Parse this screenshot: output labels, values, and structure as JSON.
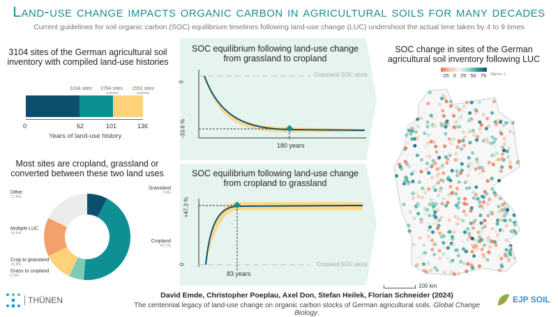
{
  "header": {
    "title": "Land-use change impacts organic carbon in agricultural soils for many decades",
    "subtitle": "Current guidelines for soil organic carbon (SOC) equilibrium timelines following land-use change (LUC) undershoot the actual time taken by 4 to 9 times"
  },
  "history": {
    "heading": "3104 sites of the German agricultural soil inventory with compiled land-use histories",
    "segments": [
      {
        "label": "3104 sites",
        "sub": "",
        "color": "#0b4f6c"
      },
      {
        "label": "2794 sites",
        "sub": "(subset)",
        "color": "#0e8f94"
      },
      {
        "label": "1552 sites",
        "sub": "(subset)",
        "color": "#fdd27a"
      }
    ],
    "ticks": [
      0,
      62,
      101,
      136
    ],
    "axis_label": "Years of land-use history"
  },
  "donut": {
    "heading": "Most sites are cropland, grassland or converted between these two land uses",
    "slices": [
      {
        "label": "Grassland",
        "pct": "7.6%",
        "value": 7.6,
        "color": "#0b4f6c"
      },
      {
        "label": "Cropland",
        "pct": "43.7%",
        "value": 43.7,
        "color": "#0e8f94"
      },
      {
        "label": "Grass to cropland",
        "pct": "5.5%",
        "value": 5.5,
        "color": "#7dcbb6"
      },
      {
        "label": "Crop to grassland",
        "pct": "10.8%",
        "value": 10.8,
        "color": "#fdd27a"
      },
      {
        "label": "Multiple LUC",
        "pct": "14.6%",
        "value": 14.6,
        "color": "#f4a06d"
      },
      {
        "label": "Other",
        "pct": "17.8%",
        "value": 17.8,
        "color": "#ececec"
      }
    ]
  },
  "chart1": {
    "heading": "SOC equilibrium following land-use change from grassland to cropland",
    "zero": "0",
    "level": "-33.6 %",
    "time": "180 years",
    "reference": "Grassland SOC stock"
  },
  "chart2": {
    "heading": "SOC equilibrium following land-use change from cropland to grassland",
    "zero": "0",
    "level": "+47.3 %",
    "time": "83 years",
    "reference": "Cropland SOC stock"
  },
  "map": {
    "heading": "SOC change in sites of the German agricultural soil inventory following LUC",
    "legend_ticks": [
      "-25",
      "0",
      "25",
      "50",
      "75"
    ],
    "legend_unit": "(Mg ha⁻¹)",
    "scale": "100 km"
  },
  "footer": {
    "authors": "David Emde, Christopher Poeplau, Axel Don, Stefan Heilek, Florian Schneider (2024)",
    "reference": "The centennial legacy of land-use change on organic carbon stocks of German agricultural soils.",
    "journal": "Global Change Biology",
    "logo_left": "THÜNEN",
    "logo_right": "EJP SOIL"
  },
  "colors": {
    "accent": "#1a8a92",
    "curve": "#0b4f6c",
    "band": "#fbd98f",
    "panel": "#e5f4ef"
  }
}
